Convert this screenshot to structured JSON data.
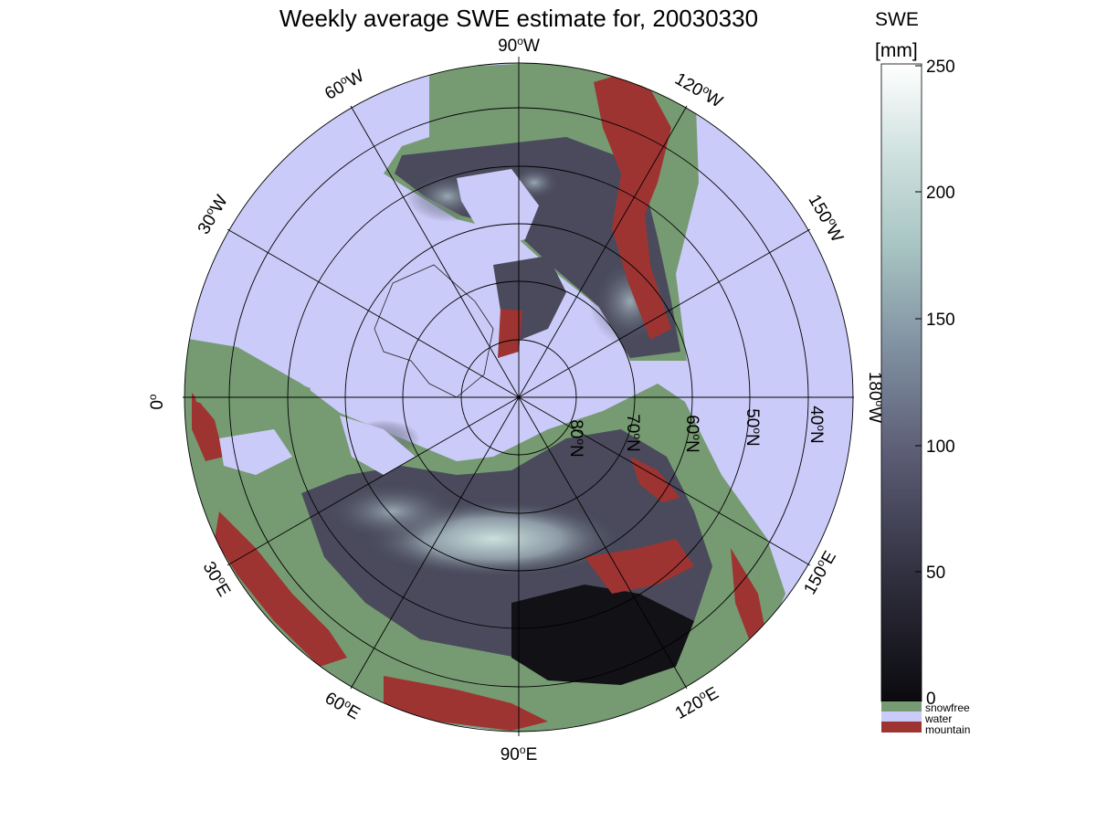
{
  "title": "Weekly average SWE estimate for, 20030330",
  "colorbar": {
    "label_line1": "SWE",
    "label_line2": "[mm]",
    "ticks": [
      "0",
      "50",
      "100",
      "150",
      "200",
      "250"
    ],
    "range": [
      0,
      250
    ],
    "gradient_colors": [
      "#0a0a0e",
      "#2b2a38",
      "#5a5a73",
      "#7f8fa0",
      "#a9c6c4",
      "#d5e5e3",
      "#ffffff"
    ]
  },
  "legend": [
    {
      "label": "snowfree",
      "color": "#769b72"
    },
    {
      "label": "water",
      "color": "#cbcbf9"
    },
    {
      "label": "mountain",
      "color": "#9e3432"
    }
  ],
  "longitude_labels": [
    {
      "text": "90°W",
      "main": "90",
      "hem": "W"
    },
    {
      "text": "120°W",
      "main": "120",
      "hem": "W"
    },
    {
      "text": "150°W",
      "main": "150",
      "hem": "W"
    },
    {
      "text": "180°W",
      "main": "180",
      "hem": "W"
    },
    {
      "text": "150°E",
      "main": "150",
      "hem": "E"
    },
    {
      "text": "120°E",
      "main": "120",
      "hem": "E"
    },
    {
      "text": "90°E",
      "main": "90",
      "hem": "E"
    },
    {
      "text": "60°E",
      "main": "60",
      "hem": "E"
    },
    {
      "text": "30°E",
      "main": "30",
      "hem": "E"
    },
    {
      "text": "0°",
      "main": "0",
      "hem": ""
    },
    {
      "text": "30°W",
      "main": "30",
      "hem": "W"
    },
    {
      "text": "60°W",
      "main": "60",
      "hem": "W"
    }
  ],
  "latitude_labels": [
    {
      "text": "80°N",
      "main": "80",
      "hem": "N"
    },
    {
      "text": "70°N",
      "main": "70",
      "hem": "N"
    },
    {
      "text": "60°N",
      "main": "60",
      "hem": "N"
    },
    {
      "text": "50°N",
      "main": "50",
      "hem": "N"
    },
    {
      "text": "40°N",
      "main": "40",
      "hem": "N"
    }
  ],
  "colors": {
    "water": "#cbcbf9",
    "snowfree": "#769b72",
    "mountain": "#9e3432",
    "swe_low": "#1c1b24",
    "swe_mid": "#5a5a73",
    "swe_high": "#c4dcd8"
  }
}
